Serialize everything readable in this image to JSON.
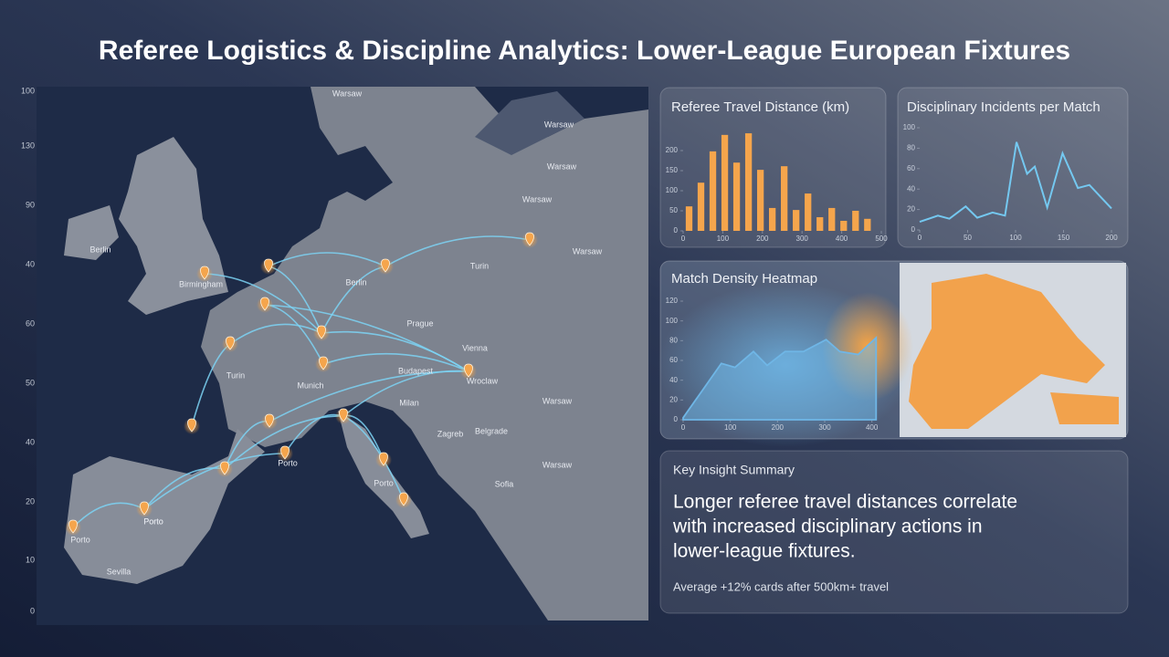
{
  "title": "Referee Logistics & Discipline Analytics: Lower-League European Fixtures",
  "map": {
    "scale_labels": [
      "100",
      "130",
      "90",
      "40",
      "60",
      "50",
      "40",
      "20",
      "10",
      "0"
    ],
    "labels": [
      "Warsaw",
      "Warsaw",
      "Warsaw",
      "Warsaw",
      "Warsaw",
      "Berlin",
      "Birmingham",
      "Berlin",
      "Turin",
      "Prague",
      "Turin",
      "Vienna",
      "Munich",
      "Budapest",
      "Wroclaw",
      "Milan",
      "Zagreb",
      "Belgrade",
      "Sofia",
      "Warsaw",
      "Porto",
      "Porto",
      "Porto",
      "Porto",
      "Porto",
      "Sevilla",
      "Warsaw"
    ]
  },
  "chart_data": [
    {
      "type": "histogram",
      "title": "Referee Travel Distance (km)",
      "color": "#f5a54c",
      "bins": [
        0,
        30,
        60,
        90,
        120,
        150,
        180,
        210,
        240,
        270,
        300,
        330,
        360,
        390,
        420,
        450,
        480
      ],
      "values": [
        61,
        120,
        198,
        239,
        170,
        243,
        152,
        57,
        161,
        52,
        93,
        34,
        57,
        25,
        50,
        30
      ],
      "xlim": [
        0,
        500
      ],
      "xticks": [
        0,
        100,
        200,
        300,
        400,
        500
      ],
      "ylim": [
        0,
        250
      ],
      "yticks": [
        0,
        50,
        100,
        150,
        200
      ]
    },
    {
      "type": "line",
      "title": "Disciplinary Incidents per Match",
      "color": "#74c8f0",
      "x": [
        0,
        19,
        31,
        48,
        60,
        76,
        89,
        101,
        112,
        120,
        133,
        149,
        165,
        177,
        200
      ],
      "values": [
        8,
        14,
        11,
        23,
        12,
        17,
        14,
        86,
        55,
        62,
        22,
        75,
        41,
        44,
        21
      ],
      "xlim": [
        0,
        200
      ],
      "xticks": [
        0,
        50,
        100,
        150,
        200
      ],
      "ylim": [
        0,
        100
      ],
      "yticks": [
        0,
        20,
        40,
        60,
        80,
        100
      ]
    },
    {
      "type": "area",
      "title": "Match Density Heatmap",
      "color": "#6fb6e6",
      "x": [
        0,
        81,
        110,
        149,
        178,
        216,
        255,
        303,
        332,
        371,
        409
      ],
      "values": [
        2,
        57,
        53,
        69,
        55,
        69,
        69,
        81,
        69,
        66,
        83
      ],
      "xlim": [
        0,
        420
      ],
      "xticks": [
        0,
        100,
        200,
        300,
        400
      ],
      "ylim": [
        0,
        120
      ],
      "yticks": [
        0,
        20,
        40,
        60,
        80,
        100,
        120
      ]
    }
  ],
  "insight": {
    "title": "Key Insight Summary",
    "lines": [
      "Longer referee travel distances correlate",
      "with increased disciplinary actions in",
      "lower-league fixtures."
    ],
    "note": "Average +12% cards after 500km+ travel"
  }
}
